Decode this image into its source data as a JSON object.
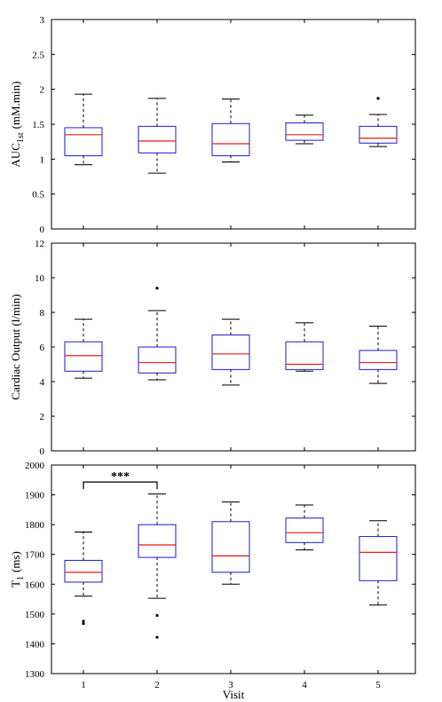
{
  "chart_data": [
    {
      "type": "box",
      "ylabel_main": "AUC",
      "ylabel_sub": "1st",
      "ylabel_rest": "(mM.min)",
      "xlabel": "",
      "ylim": [
        0,
        3
      ],
      "yticks": [
        "0",
        "0.5",
        "1",
        "1.5",
        "2",
        "2.5",
        "3"
      ],
      "categories": [
        "1",
        "2",
        "3",
        "4",
        "5"
      ],
      "boxes": [
        {
          "min": 0.92,
          "q1": 1.05,
          "median": 1.35,
          "q3": 1.45,
          "max": 1.93,
          "outliers": []
        },
        {
          "min": 0.8,
          "q1": 1.09,
          "median": 1.26,
          "q3": 1.47,
          "max": 1.87,
          "outliers": []
        },
        {
          "min": 0.96,
          "q1": 1.05,
          "median": 1.22,
          "q3": 1.51,
          "max": 1.86,
          "outliers": []
        },
        {
          "min": 1.22,
          "q1": 1.27,
          "median": 1.35,
          "q3": 1.52,
          "max": 1.63,
          "outliers": []
        },
        {
          "min": 1.18,
          "q1": 1.23,
          "median": 1.3,
          "q3": 1.47,
          "max": 1.64,
          "outliers": [
            1.87
          ]
        }
      ]
    },
    {
      "type": "box",
      "ylabel_main": "Cardiac Output (l/min)",
      "ylabel_sub": "",
      "ylabel_rest": "",
      "xlabel": "",
      "ylim": [
        0,
        12
      ],
      "yticks": [
        "0",
        "2",
        "4",
        "6",
        "8",
        "10",
        "12"
      ],
      "categories": [
        "1",
        "2",
        "3",
        "4",
        "5"
      ],
      "boxes": [
        {
          "min": 4.2,
          "q1": 4.6,
          "median": 5.5,
          "q3": 6.3,
          "max": 7.6,
          "outliers": []
        },
        {
          "min": 4.1,
          "q1": 4.5,
          "median": 5.1,
          "q3": 6.0,
          "max": 8.1,
          "outliers": [
            9.4
          ]
        },
        {
          "min": 3.8,
          "q1": 4.7,
          "median": 5.6,
          "q3": 6.7,
          "max": 7.6,
          "outliers": []
        },
        {
          "min": 4.6,
          "q1": 4.7,
          "median": 5.0,
          "q3": 6.3,
          "max": 7.4,
          "outliers": []
        },
        {
          "min": 3.9,
          "q1": 4.7,
          "median": 5.1,
          "q3": 5.8,
          "max": 7.2,
          "outliers": []
        }
      ]
    },
    {
      "type": "box",
      "ylabel_main": "T",
      "ylabel_sub": "1",
      "ylabel_rest": "(ms)",
      "xlabel": "Visit",
      "ylim": [
        1300,
        2000
      ],
      "yticks": [
        "1300",
        "1400",
        "1500",
        "1600",
        "1700",
        "1800",
        "1900",
        "2000"
      ],
      "categories": [
        "1",
        "2",
        "3",
        "4",
        "5"
      ],
      "boxes": [
        {
          "min": 1560,
          "q1": 1607,
          "median": 1640,
          "q3": 1680,
          "max": 1775,
          "outliers": [
            1468,
            1476
          ]
        },
        {
          "min": 1553,
          "q1": 1690,
          "median": 1732,
          "q3": 1800,
          "max": 1903,
          "outliers": [
            1495,
            1422
          ]
        },
        {
          "min": 1600,
          "q1": 1640,
          "median": 1695,
          "q3": 1810,
          "max": 1876,
          "outliers": []
        },
        {
          "min": 1715,
          "q1": 1740,
          "median": 1773,
          "q3": 1822,
          "max": 1866,
          "outliers": []
        },
        {
          "min": 1530,
          "q1": 1612,
          "median": 1707,
          "q3": 1760,
          "max": 1813,
          "outliers": []
        }
      ],
      "annotation": {
        "text": "***",
        "from_category": "1",
        "to_category": "2",
        "value": 1943
      }
    }
  ],
  "colors": {
    "box": "#1f1fcc",
    "median": "#e8201a",
    "whisker": "#000000",
    "axes": "#000000"
  }
}
